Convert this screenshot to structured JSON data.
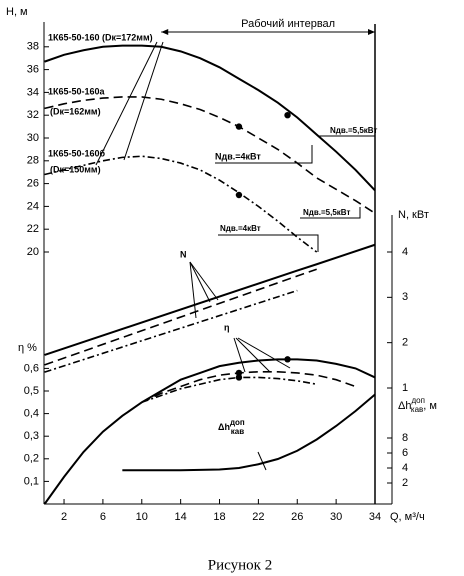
{
  "chart_data": [
    {
      "type": "line",
      "axis_side": "left",
      "ylabel": "H, м",
      "x": [
        0,
        2,
        4,
        6,
        8,
        10,
        12,
        14,
        16,
        18,
        20,
        22,
        24,
        26,
        28,
        30,
        32,
        34
      ],
      "xlim": [
        0,
        34
      ],
      "ylim": [
        20,
        40
      ],
      "yticks": [
        20,
        22,
        24,
        26,
        28,
        30,
        32,
        34,
        36,
        38
      ],
      "working_interval": [
        12,
        34
      ],
      "working_interval_label": "Рабочий интервал",
      "series": [
        {
          "name": "1К65-50-160 (Dк=172мм)",
          "style": "solid",
          "color": "#000000",
          "marker": [
            25,
            32
          ],
          "values": [
            36.7,
            37.3,
            37.7,
            38.0,
            38.1,
            38.1,
            38.0,
            37.6,
            37.0,
            36.2,
            35.2,
            34.2,
            33.1,
            31.8,
            30.3,
            28.8,
            27.2,
            25.4
          ]
        },
        {
          "name": "1К65-50-160а",
          "note": "(Dк=162мм)",
          "style": "dashed",
          "color": "#000000",
          "marker": [
            20,
            31
          ],
          "values": [
            32.6,
            33.0,
            33.3,
            33.5,
            33.6,
            33.6,
            33.4,
            33.0,
            32.5,
            31.8,
            31.0,
            30.0,
            29.0,
            27.8,
            26.5,
            25.5,
            24.5,
            23.4
          ]
        },
        {
          "name": "1К65-50-160б",
          "note": "(Dк=150мм)",
          "style": "dashdot",
          "color": "#000000",
          "marker": [
            20,
            25
          ],
          "values": [
            26.8,
            27.2,
            27.6,
            28.0,
            28.3,
            28.4,
            28.2,
            27.8,
            27.2,
            26.3,
            25.2,
            24.0,
            22.7,
            21.3,
            20.0,
            null,
            null,
            null
          ]
        }
      ],
      "annotations": [
        "Nдв.=5,5кВт",
        "Nдв.=4кВт",
        "Nдв.=5,5кВт",
        "Nдв.=4кВт"
      ]
    },
    {
      "type": "line",
      "axis_side": "right",
      "ylabel": "N, кВт",
      "x": [
        0,
        26,
        28,
        34
      ],
      "xlim": [
        0,
        34
      ],
      "ylim": [
        1,
        4
      ],
      "yticks": [
        1,
        2,
        3,
        4
      ],
      "series": [
        {
          "style": "solid",
          "color": "#000000",
          "values": [
            1.73,
            3.59,
            3.73,
            4.16
          ]
        },
        {
          "style": "dashed",
          "color": "#000000",
          "values": [
            1.51,
            3.47,
            3.62,
            null
          ]
        },
        {
          "style": "dashdot",
          "color": "#000000",
          "values": [
            1.35,
            3.15,
            null,
            null
          ]
        }
      ],
      "annotations": [
        "N"
      ]
    },
    {
      "type": "line",
      "axis_side": "left",
      "ylabel": "η %",
      "xlabel": "Q, м³/ч",
      "x": [
        0,
        2,
        4,
        6,
        8,
        10,
        12,
        14,
        16,
        18,
        20,
        22,
        24,
        26,
        28,
        30,
        32,
        34
      ],
      "xlim": [
        0,
        34
      ],
      "ylim": [
        0,
        0.7
      ],
      "xticks": [
        2,
        6,
        10,
        14,
        18,
        22,
        26,
        30,
        34
      ],
      "yticks": [
        {
          "value": 0.1,
          "label": "0,1"
        },
        {
          "value": 0.2,
          "label": "0,2"
        },
        {
          "value": 0.3,
          "label": "0,3"
        },
        {
          "value": 0.4,
          "label": "0,4"
        },
        {
          "value": 0.5,
          "label": "0,5"
        },
        {
          "value": 0.6,
          "label": "0,6"
        }
      ],
      "series": [
        {
          "style": "solid",
          "color": "#000000",
          "marker": [
            25,
            0.64
          ],
          "values": [
            0,
            0.12,
            0.23,
            0.32,
            0.39,
            0.45,
            0.5,
            0.55,
            0.58,
            0.61,
            0.625,
            0.635,
            0.64,
            0.64,
            0.635,
            0.62,
            0.6,
            0.56
          ]
        },
        {
          "style": "dashed",
          "color": "#000000",
          "marker": [
            20,
            0.58
          ],
          "values": [
            null,
            null,
            null,
            null,
            null,
            0.45,
            0.49,
            0.52,
            0.55,
            0.57,
            0.58,
            0.585,
            0.585,
            0.58,
            0.57,
            0.55,
            0.52,
            null
          ]
        },
        {
          "style": "dashdot",
          "color": "#000000",
          "marker": [
            20,
            0.56
          ],
          "values": [
            null,
            null,
            null,
            null,
            null,
            0.45,
            0.48,
            0.51,
            0.53,
            0.55,
            0.56,
            0.56,
            0.555,
            0.545,
            0.53,
            null,
            null,
            null
          ]
        }
      ],
      "annotations": [
        "η"
      ]
    },
    {
      "type": "line",
      "axis_side": "right",
      "ylabel": {
        "base": "Δh",
        "sup": "доп",
        "sub": "кав",
        "unit": ", м"
      },
      "x": [
        0,
        2,
        4,
        6,
        8,
        10,
        12,
        14,
        16,
        18,
        20,
        22,
        24,
        26,
        28,
        30,
        32,
        34
      ],
      "xlim": [
        0,
        34
      ],
      "ylim": [
        0,
        14
      ],
      "yticks": [
        2,
        4,
        6,
        8
      ],
      "series": [
        {
          "style": "solid",
          "color": "#000000",
          "values": [
            null,
            null,
            null,
            null,
            3.7,
            3.7,
            3.7,
            3.7,
            3.75,
            3.8,
            4.0,
            4.5,
            5.2,
            6.3,
            7.8,
            9.6,
            11.6,
            13.8
          ]
        }
      ],
      "annotations": [
        {
          "base": "Δh",
          "sup": "доп",
          "sub": "кав"
        }
      ]
    }
  ],
  "caption": "Рисунок 2"
}
